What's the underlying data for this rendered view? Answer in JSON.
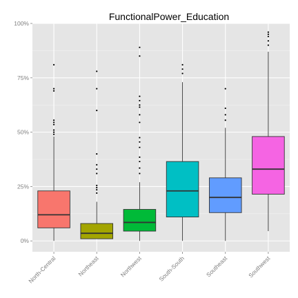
{
  "chart_data": {
    "type": "boxplot",
    "title": "FunctionalPower_Education",
    "xlabel": "",
    "ylabel": "",
    "ylim": [
      -0.05,
      1.0
    ],
    "y_ticks": [
      0,
      0.25,
      0.5,
      0.75,
      1.0
    ],
    "y_tick_labels": [
      "0%",
      "25%",
      "50%",
      "75%",
      "100%"
    ],
    "grid": true,
    "legend": "none",
    "panel_background": "#e5e5e5",
    "grid_color": "#ffffff",
    "categories": [
      "North-Central",
      "Northeast",
      "Northwest",
      "South-South",
      "Southeast",
      "Southwest"
    ],
    "boxes": [
      {
        "category": "North-Central",
        "color": "#f8766d",
        "whisker_low": 0.0,
        "q1": 0.06,
        "median": 0.12,
        "q3": 0.23,
        "whisker_high": 0.48,
        "outliers": [
          0.81,
          0.7,
          0.69,
          0.555,
          0.545,
          0.535,
          0.51,
          0.5,
          0.49
        ]
      },
      {
        "category": "Northeast",
        "color": "#a3a500",
        "whisker_low": 0.01,
        "q1": 0.01,
        "median": 0.035,
        "q3": 0.08,
        "whisker_high": 0.18,
        "outliers": [
          0.78,
          0.7,
          0.6,
          0.4,
          0.35,
          0.33,
          0.31,
          0.255,
          0.245,
          0.235,
          0.22
        ]
      },
      {
        "category": "Northwest",
        "color": "#00ba38",
        "whisker_low": 0.0,
        "q1": 0.045,
        "median": 0.085,
        "q3": 0.145,
        "whisker_high": 0.27,
        "outliers": [
          0.89,
          0.85,
          0.665,
          0.645,
          0.625,
          0.615,
          0.58,
          0.545,
          0.475,
          0.455,
          0.43,
          0.385,
          0.365,
          0.335,
          0.31
        ]
      },
      {
        "category": "South-South",
        "color": "#00bfc4",
        "whisker_low": 0.0,
        "q1": 0.11,
        "median": 0.23,
        "q3": 0.365,
        "whisker_high": 0.73,
        "outliers": [
          0.81,
          0.79,
          0.77
        ]
      },
      {
        "category": "Southeast",
        "color": "#619cff",
        "whisker_low": 0.0,
        "q1": 0.13,
        "median": 0.2,
        "q3": 0.29,
        "whisker_high": 0.52,
        "outliers": [
          0.7,
          0.61,
          0.58,
          0.555
        ]
      },
      {
        "category": "Southwest",
        "color": "#f564e3",
        "whisker_low": 0.045,
        "q1": 0.215,
        "median": 0.33,
        "q3": 0.48,
        "whisker_high": 0.87,
        "outliers": [
          0.96,
          0.95,
          0.94,
          0.92,
          0.9
        ]
      }
    ]
  }
}
